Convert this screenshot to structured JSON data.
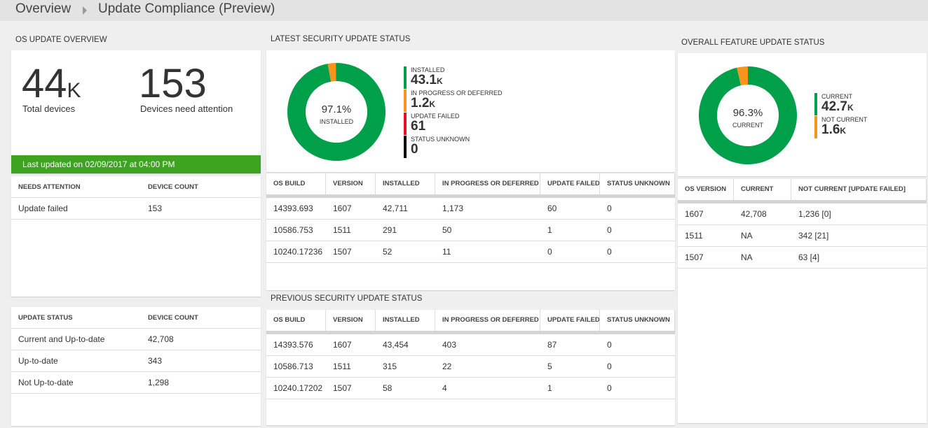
{
  "header": {
    "breadcrumb": [
      "Overview",
      "Update Compliance (Preview)"
    ]
  },
  "os_update_overview": {
    "title": "OS UPDATE OVERVIEW",
    "kpis": [
      {
        "value_label": "44K",
        "label": "Total devices"
      },
      {
        "value_label": "153",
        "label": "Devices need attention"
      }
    ],
    "last_updated": "Last updated on 02/09/2017 at 04:00 PM",
    "needs_attention": {
      "columns": [
        "NEEDS ATTENTION",
        "DEVICE COUNT"
      ],
      "rows": [
        [
          "Update failed",
          "153"
        ]
      ]
    },
    "update_status": {
      "columns": [
        "UPDATE STATUS",
        "DEVICE COUNT"
      ],
      "rows": [
        [
          "Current and Up-to-date",
          "42,708"
        ],
        [
          "Up-to-date",
          "343"
        ],
        [
          "Not Up-to-date",
          "1,298"
        ]
      ]
    }
  },
  "latest_security": {
    "title": "LATEST SECURITY UPDATE STATUS",
    "chart": {
      "type": "donut",
      "center_value": "97.1%",
      "center_label": "INSTALLED",
      "series": [
        {
          "name": "INSTALLED",
          "color": "#00a04a",
          "value": 43100,
          "value_label": "43.1K"
        },
        {
          "name": "IN PROGRESS OR DEFERRED",
          "color": "#f7941d",
          "value": 1200,
          "value_label": "1.2K"
        },
        {
          "name": "UPDATE FAILED",
          "color": "#e81123",
          "value": 61,
          "value_label": "61"
        },
        {
          "name": "STATUS UNKNOWN",
          "color": "#000000",
          "value": 0,
          "value_label": "0"
        }
      ]
    },
    "table": {
      "columns": [
        "OS BUILD",
        "VERSION",
        "INSTALLED",
        "IN PROGRESS OR DEFERRED",
        "UPDATE FAILED",
        "STATUS UNKNOWN"
      ],
      "rows": [
        [
          "14393.693",
          "1607",
          "42,711",
          "1,173",
          "60",
          "0"
        ],
        [
          "10586.753",
          "1511",
          "291",
          "50",
          "1",
          "0"
        ],
        [
          "10240.17236",
          "1507",
          "52",
          "11",
          "0",
          "0"
        ]
      ]
    }
  },
  "previous_security": {
    "title": "PREVIOUS SECURITY UPDATE STATUS",
    "table": {
      "columns": [
        "OS BUILD",
        "VERSION",
        "INSTALLED",
        "IN PROGRESS OR DEFERRED",
        "UPDATE FAILED",
        "STATUS UNKNOWN"
      ],
      "rows": [
        [
          "14393.576",
          "1607",
          "43,454",
          "403",
          "87",
          "0"
        ],
        [
          "10586.713",
          "1511",
          "315",
          "22",
          "5",
          "0"
        ],
        [
          "10240.17202",
          "1507",
          "58",
          "4",
          "1",
          "0"
        ]
      ]
    }
  },
  "feature_update": {
    "title": "OVERALL FEATURE UPDATE STATUS",
    "chart": {
      "type": "donut",
      "center_value": "96.3%",
      "center_label": "CURRENT",
      "series": [
        {
          "name": "CURRENT",
          "color": "#00a04a",
          "value": 42700,
          "value_label": "42.7K"
        },
        {
          "name": "NOT CURRENT",
          "color": "#f7941d",
          "value": 1600,
          "value_label": "1.6K"
        }
      ]
    },
    "table": {
      "columns": [
        "OS VERSION",
        "CURRENT",
        "NOT CURRENT [UPDATE FAILED]"
      ],
      "rows": [
        [
          "1607",
          "42,708",
          "1,236 [0]"
        ],
        [
          "1511",
          "NA",
          "342 [21]"
        ],
        [
          "1507",
          "NA",
          "63 [4]"
        ]
      ]
    }
  }
}
